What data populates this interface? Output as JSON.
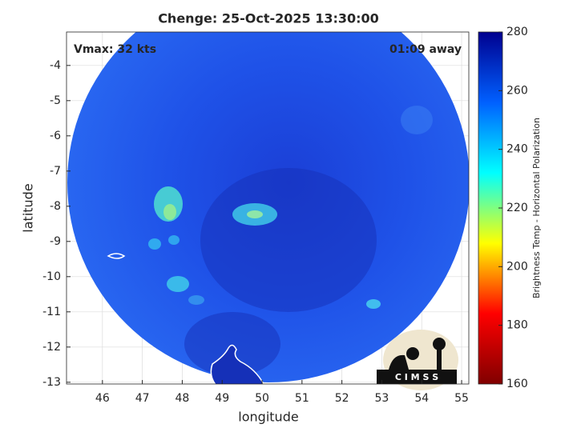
{
  "title": "Chenge: 25-Oct-2025 13:30:00",
  "annotations": {
    "vmax": "Vmax: 32 kts",
    "time_away": "01:09 away"
  },
  "x_axis": {
    "label": "longitude",
    "lim": [
      45.1,
      55.18
    ],
    "ticks": [
      46,
      47,
      48,
      49,
      50,
      51,
      52,
      53,
      54,
      55
    ]
  },
  "y_axis": {
    "label": "latitude",
    "lim": [
      -13.05,
      -3.05
    ],
    "ticks": [
      -13,
      -12,
      -11,
      -10,
      -9,
      -8,
      -7,
      -6,
      -5,
      -4
    ]
  },
  "grid": true,
  "colorbar": {
    "label": "Brightness Temp - Horizontal Polarization",
    "lim": [
      160,
      280
    ],
    "ticks": [
      160,
      180,
      200,
      220,
      240,
      260,
      280
    ],
    "colors": [
      "#800000",
      "#ff0000",
      "#ffff00",
      "#00ffff",
      "#0060ff",
      "#00008f"
    ]
  },
  "logo": "C I M S S"
}
